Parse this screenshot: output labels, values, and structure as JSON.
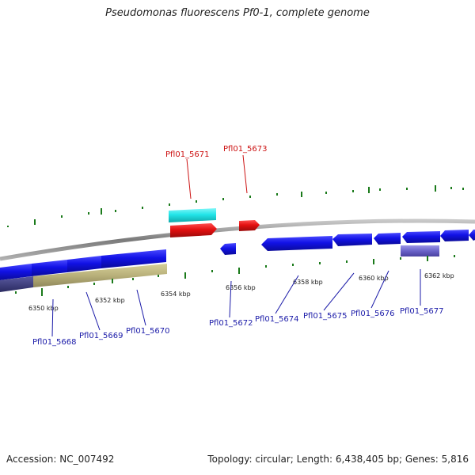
{
  "title": "Pseudomonas fluorescens Pf0-1, complete genome",
  "footer": {
    "accession": "Accession: NC_007492",
    "summary": "Topology: circular; Length: 6,438,405 bp; Genes: 5,816"
  },
  "colors": {
    "forward_cds": "#e31010",
    "forward_other": "#22e5e8",
    "reverse_cds": "#1212e6",
    "reverse_pseudo": "#6a62c9",
    "khaki_band": "#b8b07a",
    "dark_band": "#3a3a7a",
    "backbone": "#8a8a8a",
    "tick_green": "#1a7a1a",
    "label_blue": "#1a1aa8",
    "label_red": "#cc1111"
  },
  "kbp_labels": [
    "6350 kbp",
    "6352 kbp",
    "6354 kbp",
    "6356 kbp",
    "6358 kbp",
    "6360 kbp",
    "6362 kbp"
  ],
  "gene_labels": {
    "forward": [
      "Pfl01_5671",
      "Pfl01_5673"
    ],
    "reverse": [
      "Pfl01_5668",
      "Pfl01_5669",
      "Pfl01_5670",
      "Pfl01_5672",
      "Pfl01_5674",
      "Pfl01_5675",
      "Pfl01_5676",
      "Pfl01_5677"
    ]
  }
}
